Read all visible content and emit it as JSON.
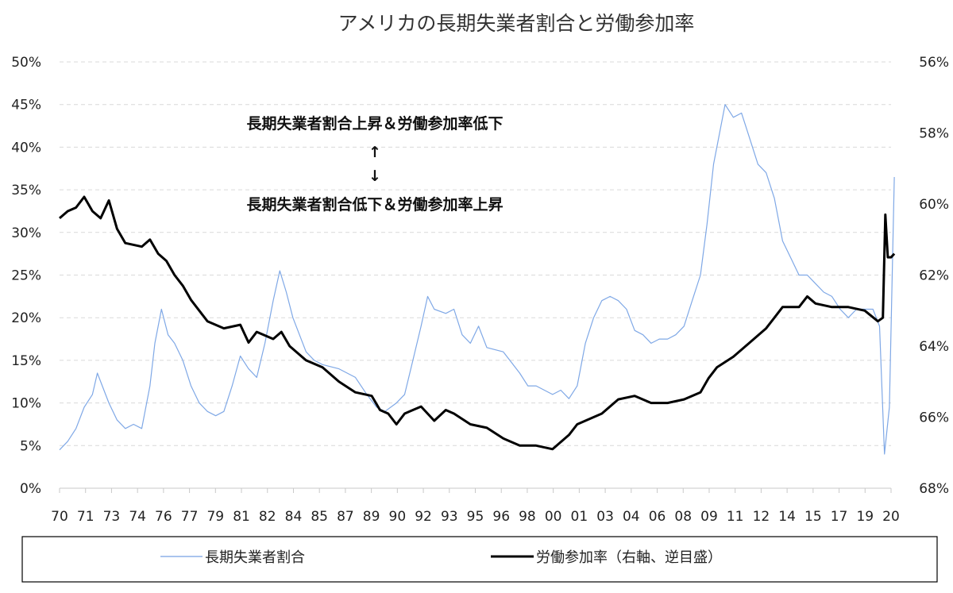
{
  "chart_data": {
    "type": "line",
    "title": "アメリカの長期失業者割合と労働参加率",
    "x_tick_labels": [
      "70",
      "71",
      "73",
      "74",
      "76",
      "77",
      "79",
      "81",
      "82",
      "84",
      "85",
      "87",
      "89",
      "90",
      "92",
      "93",
      "95",
      "96",
      "98",
      "00",
      "01",
      "03",
      "04",
      "06",
      "08",
      "09",
      "11",
      "12",
      "14",
      "15",
      "17",
      "19",
      "20"
    ],
    "xlim": [
      1970,
      2020.6
    ],
    "y_left": {
      "ticks": [
        "0%",
        "5%",
        "10%",
        "15%",
        "20%",
        "25%",
        "30%",
        "35%",
        "40%",
        "45%",
        "50%"
      ],
      "ylim": [
        0,
        50
      ]
    },
    "y_right": {
      "ticks": [
        "56%",
        "58%",
        "60%",
        "62%",
        "64%",
        "66%",
        "68%"
      ],
      "ylim": [
        56,
        68
      ],
      "inverted": true
    },
    "grid": true,
    "legend_position": "bottom",
    "annotations": {
      "top": "長期失業者割合上昇＆労働参加率低下",
      "up_arrow": "↑",
      "down_arrow": "↓",
      "bottom": "長期失業者割合低下＆労働参加率上昇"
    },
    "series": [
      {
        "name": "長期失業者割合",
        "axis": "left",
        "color": "#7fa8e6",
        "points": [
          [
            1970,
            4.5
          ],
          [
            1970.5,
            5.5
          ],
          [
            1971,
            7
          ],
          [
            1971.5,
            9.5
          ],
          [
            1972,
            11
          ],
          [
            1972.3,
            13.5
          ],
          [
            1972.6,
            12
          ],
          [
            1973,
            10
          ],
          [
            1973.5,
            8
          ],
          [
            1974,
            7
          ],
          [
            1974.5,
            7.5
          ],
          [
            1975,
            7
          ],
          [
            1975.5,
            12
          ],
          [
            1975.8,
            17
          ],
          [
            1976.2,
            21
          ],
          [
            1976.6,
            18
          ],
          [
            1977,
            17
          ],
          [
            1977.5,
            15
          ],
          [
            1978,
            12
          ],
          [
            1978.5,
            10
          ],
          [
            1979,
            9
          ],
          [
            1979.5,
            8.5
          ],
          [
            1980,
            9
          ],
          [
            1980.5,
            12
          ],
          [
            1981,
            15.5
          ],
          [
            1981.5,
            14
          ],
          [
            1982,
            13
          ],
          [
            1982.5,
            17
          ],
          [
            1983,
            22
          ],
          [
            1983.4,
            25.5
          ],
          [
            1983.8,
            23
          ],
          [
            1984.2,
            20
          ],
          [
            1984.6,
            18
          ],
          [
            1985,
            16
          ],
          [
            1985.5,
            15
          ],
          [
            1986,
            14.5
          ],
          [
            1987,
            14
          ],
          [
            1988,
            13
          ],
          [
            1988.7,
            11
          ],
          [
            1989.3,
            9.5
          ],
          [
            1989.8,
            9
          ],
          [
            1990.5,
            10
          ],
          [
            1991,
            11
          ],
          [
            1991.5,
            15
          ],
          [
            1992,
            19
          ],
          [
            1992.4,
            22.5
          ],
          [
            1992.8,
            21
          ],
          [
            1993.5,
            20.5
          ],
          [
            1994,
            21
          ],
          [
            1994.5,
            18
          ],
          [
            1995,
            17
          ],
          [
            1995.5,
            19
          ],
          [
            1996,
            16.5
          ],
          [
            1997,
            16
          ],
          [
            1998,
            13.5
          ],
          [
            1998.5,
            12
          ],
          [
            1999,
            12
          ],
          [
            2000,
            11
          ],
          [
            2000.5,
            11.5
          ],
          [
            2001,
            10.5
          ],
          [
            2001.5,
            12
          ],
          [
            2002,
            17
          ],
          [
            2002.5,
            20
          ],
          [
            2003,
            22
          ],
          [
            2003.5,
            22.5
          ],
          [
            2004,
            22
          ],
          [
            2004.5,
            21
          ],
          [
            2005,
            18.5
          ],
          [
            2005.5,
            18
          ],
          [
            2006,
            17
          ],
          [
            2006.5,
            17.5
          ],
          [
            2007,
            17.5
          ],
          [
            2007.5,
            18
          ],
          [
            2008,
            19
          ],
          [
            2008.5,
            22
          ],
          [
            2009,
            25
          ],
          [
            2009.4,
            31
          ],
          [
            2009.8,
            38
          ],
          [
            2010.2,
            42
          ],
          [
            2010.5,
            45
          ],
          [
            2011,
            43.5
          ],
          [
            2011.5,
            44
          ],
          [
            2012,
            41
          ],
          [
            2012.5,
            38
          ],
          [
            2013,
            37
          ],
          [
            2013.5,
            34
          ],
          [
            2014,
            29
          ],
          [
            2014.5,
            27
          ],
          [
            2015,
            25
          ],
          [
            2015.5,
            25
          ],
          [
            2016,
            24
          ],
          [
            2016.5,
            23
          ],
          [
            2017,
            22.5
          ],
          [
            2017.5,
            21
          ],
          [
            2018,
            20
          ],
          [
            2018.5,
            21
          ],
          [
            2019,
            21
          ],
          [
            2019.5,
            21
          ],
          [
            2019.9,
            19
          ],
          [
            2020.2,
            4
          ],
          [
            2020.5,
            9.5
          ],
          [
            2020.8,
            36.5
          ]
        ]
      },
      {
        "name": "労働参加率（右軸、逆目盛）",
        "axis": "right",
        "color": "#000000",
        "points": [
          [
            1970,
            60.4
          ],
          [
            1970.5,
            60.2
          ],
          [
            1971,
            60.1
          ],
          [
            1971.5,
            59.8
          ],
          [
            1972,
            60.2
          ],
          [
            1972.5,
            60.4
          ],
          [
            1973,
            59.9
          ],
          [
            1973.5,
            60.7
          ],
          [
            1974,
            61.1
          ],
          [
            1975,
            61.2
          ],
          [
            1975.5,
            61.0
          ],
          [
            1976,
            61.4
          ],
          [
            1976.5,
            61.6
          ],
          [
            1977,
            62.0
          ],
          [
            1977.5,
            62.3
          ],
          [
            1978,
            62.7
          ],
          [
            1978.5,
            63.0
          ],
          [
            1979,
            63.3
          ],
          [
            1980,
            63.5
          ],
          [
            1981,
            63.4
          ],
          [
            1981.5,
            63.9
          ],
          [
            1982,
            63.6
          ],
          [
            1983,
            63.8
          ],
          [
            1983.5,
            63.6
          ],
          [
            1984,
            64.0
          ],
          [
            1985,
            64.4
          ],
          [
            1986,
            64.6
          ],
          [
            1987,
            65.0
          ],
          [
            1988,
            65.3
          ],
          [
            1989,
            65.4
          ],
          [
            1989.5,
            65.8
          ],
          [
            1990,
            65.9
          ],
          [
            1990.5,
            66.2
          ],
          [
            1991,
            65.9
          ],
          [
            1991.5,
            65.8
          ],
          [
            1992,
            65.7
          ],
          [
            1992.8,
            66.1
          ],
          [
            1993.5,
            65.8
          ],
          [
            1994,
            65.9
          ],
          [
            1995,
            66.2
          ],
          [
            1996,
            66.3
          ],
          [
            1997,
            66.6
          ],
          [
            1998,
            66.8
          ],
          [
            1999,
            66.8
          ],
          [
            2000,
            66.9
          ],
          [
            2001,
            66.5
          ],
          [
            2001.5,
            66.2
          ],
          [
            2002,
            66.1
          ],
          [
            2003,
            65.9
          ],
          [
            2004,
            65.5
          ],
          [
            2005,
            65.4
          ],
          [
            2006,
            65.6
          ],
          [
            2007,
            65.6
          ],
          [
            2008,
            65.5
          ],
          [
            2009,
            65.3
          ],
          [
            2009.5,
            64.9
          ],
          [
            2010,
            64.6
          ],
          [
            2011,
            64.3
          ],
          [
            2012,
            63.9
          ],
          [
            2013,
            63.5
          ],
          [
            2013.5,
            63.2
          ],
          [
            2014,
            62.9
          ],
          [
            2015,
            62.9
          ],
          [
            2015.5,
            62.6
          ],
          [
            2016,
            62.8
          ],
          [
            2017,
            62.9
          ],
          [
            2018,
            62.9
          ],
          [
            2019,
            63.0
          ],
          [
            2019.8,
            63.3
          ],
          [
            2020.1,
            63.2
          ],
          [
            2020.25,
            60.3
          ],
          [
            2020.4,
            61.5
          ],
          [
            2020.6,
            61.5
          ],
          [
            2020.8,
            61.4
          ]
        ]
      }
    ]
  }
}
